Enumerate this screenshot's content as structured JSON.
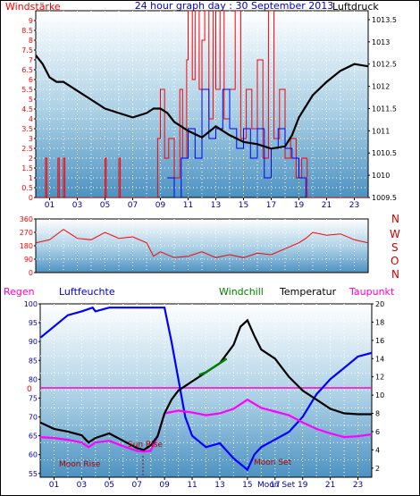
{
  "header": {
    "left_label": "Windstärke",
    "title": "24 hour graph day : 30 September 2013",
    "right_label": "Luftdruck"
  },
  "colors": {
    "wind_speed": "#ff0000",
    "wind_gust": "#0000ff",
    "pressure": "#000000",
    "direction": "#ff0000",
    "humidity": "#0000ff",
    "temperature": "#000000",
    "windchill": "#008000",
    "dewpoint": "#ff00ff",
    "rain": "#ff0000",
    "zero_line": "#ff00cc",
    "moon_text": "#aa0000",
    "sun_text": "#aa0000",
    "tick_label": "#0000aa"
  },
  "legend_bottom": {
    "rain": "Regen",
    "humidity": "Luftfeuchte",
    "windchill": "Windchill",
    "temperature": "Temperatur",
    "dewpoint": "Taupunkt"
  },
  "annotations": {
    "moon_rise": "Moon Rise",
    "sun_rise": "Sun Rise",
    "moon_set": "Moon Set",
    "moon_set_axis": "Moon Set"
  },
  "compass": [
    "N",
    "W",
    "S",
    "O",
    "N"
  ],
  "chart_data": [
    {
      "type": "line",
      "id": "wind_pressure",
      "title": "24 hour graph day : 30 September 2013",
      "x_ticks": [
        "01",
        "03",
        "05",
        "07",
        "09",
        "11",
        "13",
        "15",
        "17",
        "19",
        "21",
        "23"
      ],
      "x_range": [
        0,
        24
      ],
      "y_left": {
        "label": "Windstärke",
        "range": [
          0,
          9.5
        ],
        "ticks": [
          "0",
          "0.5",
          "1",
          "1.5",
          "2",
          "2.5",
          "3",
          "3.5",
          "4",
          "4.5",
          "5",
          "5.5",
          "6",
          "6.5",
          "7",
          "7.5",
          "8",
          "8.5",
          "9"
        ]
      },
      "y_right": {
        "label": "Luftdruck",
        "range": [
          1009.5,
          1013.7
        ],
        "ticks": [
          "1009.5",
          "1010",
          "1010.5",
          "1011",
          "1011.5",
          "1012",
          "1012.5",
          "1013",
          "1013.5"
        ]
      },
      "series": [
        {
          "name": "Luftdruck",
          "axis": "right",
          "x": [
            0,
            0.5,
            1,
            1.5,
            2,
            3,
            4,
            5,
            6,
            7,
            8,
            8.5,
            9,
            9.5,
            10,
            11,
            12,
            13,
            14,
            15,
            16,
            17,
            18,
            18.5,
            19,
            20,
            21,
            22,
            23,
            24
          ],
          "y": [
            1012.7,
            1012.5,
            1012.2,
            1012.1,
            1012.1,
            1011.9,
            1011.7,
            1011.5,
            1011.4,
            1011.3,
            1011.4,
            1011.5,
            1011.5,
            1011.4,
            1011.2,
            1011.0,
            1010.85,
            1011.1,
            1010.9,
            1010.75,
            1010.7,
            1010.6,
            1010.65,
            1010.9,
            1011.3,
            1011.8,
            1012.1,
            1012.35,
            1012.5,
            1012.45
          ]
        },
        {
          "name": "Windstärke",
          "axis": "left",
          "style": "step",
          "x": [
            0,
            0.7,
            0.8,
            1.6,
            1.7,
            2.0,
            2.1,
            5.0,
            5.1,
            6.0,
            6.1,
            8.8,
            9.0,
            9.3,
            9.6,
            10.0,
            10.4,
            10.6,
            10.9,
            11.0,
            11.3,
            11.5,
            11.8,
            12.0,
            12.2,
            12.5,
            12.8,
            13.0,
            13.3,
            13.6,
            14.0,
            14.4,
            14.8,
            15.2,
            15.6,
            16.0,
            16.4,
            16.8,
            17.2,
            17.6,
            18.0,
            18.4,
            18.8,
            19.2,
            19.6,
            24
          ],
          "y": [
            0,
            2,
            0,
            2,
            0,
            2,
            0,
            2,
            0,
            2,
            0,
            3,
            5.5,
            2,
            3,
            1,
            5.5,
            2,
            7,
            9.5,
            6,
            9.5,
            5.5,
            8,
            9.5,
            4,
            9.5,
            5.5,
            9.5,
            4,
            5.5,
            9.5,
            3,
            5.5,
            3.5,
            7,
            2,
            9.5,
            3,
            5.5,
            2,
            3,
            1,
            2,
            0,
            0
          ]
        },
        {
          "name": "Böen",
          "axis": "left",
          "style": "step",
          "x": [
            9.5,
            10.0,
            10.5,
            11.0,
            11.5,
            12.0,
            12.5,
            13.0,
            13.5,
            14.0,
            14.5,
            15.0,
            15.5,
            16.0,
            16.5,
            17.0,
            17.5,
            18.0,
            18.5,
            19.0,
            19.5
          ],
          "y": [
            1,
            0,
            2,
            3.5,
            2,
            5.5,
            3,
            3.5,
            5.5,
            3.5,
            2.5,
            3.5,
            2,
            3.5,
            1,
            2.5,
            3.5,
            2.5,
            2,
            1,
            0
          ]
        }
      ]
    },
    {
      "type": "line",
      "id": "wind_direction",
      "x_range": [
        0,
        24
      ],
      "y_left": {
        "range": [
          0,
          360
        ],
        "ticks": [
          "0",
          "90",
          "180",
          "270",
          "360"
        ]
      },
      "series": [
        {
          "name": "Windrichtung",
          "x": [
            0,
            1,
            2,
            2.5,
            3,
            4,
            5,
            6,
            7,
            8,
            8.5,
            9,
            10,
            11,
            12,
            13,
            14,
            15,
            16,
            17,
            18,
            19,
            19.5,
            20,
            21,
            22,
            23,
            24
          ],
          "y": [
            200,
            220,
            290,
            260,
            230,
            220,
            270,
            230,
            240,
            200,
            110,
            140,
            100,
            110,
            140,
            100,
            120,
            100,
            130,
            120,
            160,
            200,
            230,
            270,
            250,
            260,
            220,
            200
          ]
        }
      ]
    },
    {
      "type": "line",
      "id": "temp_humidity",
      "x_range": [
        0,
        24
      ],
      "x_ticks": [
        "01",
        "03",
        "05",
        "07",
        "09",
        "11",
        "13",
        "15",
        "17",
        "19",
        "21",
        "23"
      ],
      "y_left": {
        "label": "Luftfeuchte",
        "range": [
          54,
          100
        ],
        "ticks": [
          "55",
          "60",
          "65",
          "70",
          "75",
          "80",
          "85",
          "90",
          "95",
          "100"
        ]
      },
      "y_right": {
        "label": "Temperatur",
        "range": [
          1,
          20
        ],
        "ticks": [
          "2",
          "4",
          "6",
          "8",
          "10",
          "12",
          "14",
          "16",
          "18",
          "20"
        ]
      },
      "y_rain": {
        "label": "Regen",
        "tick": "0"
      },
      "series": [
        {
          "name": "Luftfeuchte",
          "axis": "left",
          "x": [
            0,
            1,
            2,
            3,
            3.8,
            4,
            5,
            6,
            7,
            8,
            9,
            9.5,
            10,
            10.5,
            11,
            12,
            13,
            14,
            15,
            15.5,
            16,
            17,
            18,
            19,
            20,
            21,
            22,
            23,
            24
          ],
          "y": [
            91,
            94,
            97,
            98,
            99,
            98,
            99,
            99,
            99,
            99,
            99,
            90,
            80,
            70,
            65,
            62,
            63,
            59,
            56,
            60,
            62,
            64,
            66,
            70,
            76,
            80,
            83,
            86,
            87
          ]
        },
        {
          "name": "Temperatur",
          "axis": "right",
          "x": [
            0,
            1,
            2,
            3,
            3.5,
            4,
            5,
            6,
            7,
            7.5,
            8,
            8.5,
            9,
            9.5,
            10,
            11,
            12,
            13,
            14,
            14.5,
            15,
            15.5,
            16,
            17,
            18,
            19,
            20,
            21,
            22,
            23,
            24
          ],
          "y": [
            7.0,
            6.3,
            6.0,
            5.6,
            4.8,
            5.3,
            5.8,
            5.0,
            4.2,
            4.0,
            4.5,
            5.5,
            8.0,
            9.5,
            10.5,
            11.5,
            12.5,
            13.5,
            15.5,
            17.5,
            18.2,
            16.5,
            15.0,
            14.0,
            12.0,
            10.5,
            9.5,
            8.5,
            8.0,
            7.9,
            7.9
          ]
        },
        {
          "name": "Windchill",
          "axis": "right",
          "x": [
            11.5,
            12.0,
            12.5,
            13.0,
            13.5
          ],
          "y": [
            12.2,
            12.5,
            13.0,
            13.5,
            14.0
          ]
        },
        {
          "name": "Taupunkt",
          "axis": "right",
          "x": [
            0,
            1,
            2,
            3,
            3.5,
            4,
            5,
            6,
            7,
            7.5,
            8,
            8.5,
            9,
            10,
            11,
            12,
            13,
            14,
            15,
            16,
            17,
            18,
            19,
            20,
            21,
            22,
            23,
            24
          ],
          "y": [
            5.4,
            5.3,
            5.1,
            4.8,
            4.3,
            4.8,
            5.0,
            4.4,
            3.9,
            3.8,
            3.9,
            5.5,
            8.0,
            8.3,
            8.1,
            7.8,
            8.0,
            8.5,
            9.5,
            8.6,
            8.2,
            7.8,
            7.0,
            6.3,
            5.8,
            5.4,
            5.5,
            5.7
          ]
        }
      ]
    }
  ]
}
